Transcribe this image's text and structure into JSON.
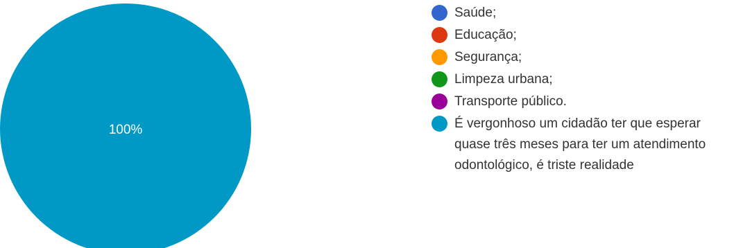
{
  "chart_data": {
    "type": "pie",
    "slices": [
      {
        "label": "Saúde;",
        "value": 0,
        "color": "#3366cc"
      },
      {
        "label": "Educação;",
        "value": 0,
        "color": "#dc3912"
      },
      {
        "label": "Segurança;",
        "value": 0,
        "color": "#ff9900"
      },
      {
        "label": "Limpeza urbana;",
        "value": 0,
        "color": "#109618"
      },
      {
        "label": "Transporte público.",
        "value": 0,
        "color": "#990099"
      },
      {
        "label": "É vergonhoso um cidadão ter que esperar quase três meses para ter um atendimento odontológico, é triste realidade",
        "value": 100,
        "color": "#0099c6"
      }
    ],
    "slice_label_text": "100%",
    "legend_position": "right"
  }
}
